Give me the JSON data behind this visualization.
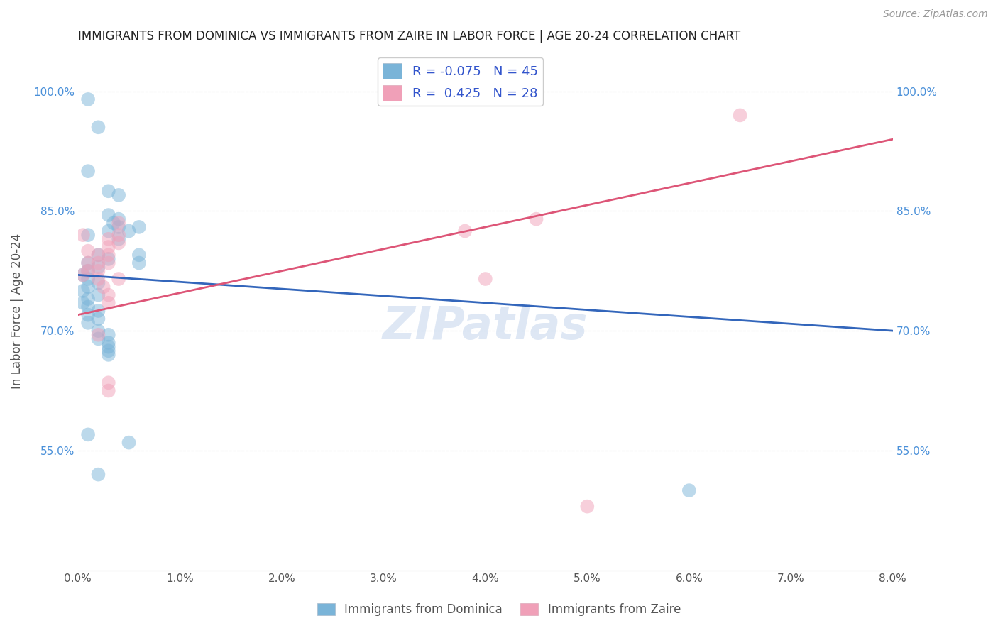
{
  "title": "IMMIGRANTS FROM DOMINICA VS IMMIGRANTS FROM ZAIRE IN LABOR FORCE | AGE 20-24 CORRELATION CHART",
  "source": "Source: ZipAtlas.com",
  "ylabel": "In Labor Force | Age 20-24",
  "xlim": [
    0.0,
    0.08
  ],
  "ylim": [
    0.4,
    1.05
  ],
  "xticks": [
    0.0,
    0.01,
    0.02,
    0.03,
    0.04,
    0.05,
    0.06,
    0.07,
    0.08
  ],
  "xticklabels": [
    "0.0%",
    "1.0%",
    "2.0%",
    "3.0%",
    "4.0%",
    "5.0%",
    "6.0%",
    "7.0%",
    "8.0%"
  ],
  "yticks": [
    0.55,
    0.7,
    0.85,
    1.0
  ],
  "yticklabels": [
    "55.0%",
    "70.0%",
    "85.0%",
    "100.0%"
  ],
  "legend_r1": "R = -0.075   N = 45",
  "legend_r2": "R =  0.425   N = 28",
  "dominica_color": "#7ab4d8",
  "zaire_color": "#f0a0b8",
  "dominica_trend_color": "#3366bb",
  "zaire_trend_color": "#dd5577",
  "watermark": "ZIPatlas",
  "dominica_trend_x0": 0.0,
  "dominica_trend_y0": 0.77,
  "dominica_trend_x1": 0.08,
  "dominica_trend_y1": 0.7,
  "zaire_trend_x0": 0.0,
  "zaire_trend_y0": 0.72,
  "zaire_trend_x1": 0.08,
  "zaire_trend_y1": 0.94,
  "dominica_points": [
    [
      0.001,
      0.99
    ],
    [
      0.002,
      0.955
    ],
    [
      0.001,
      0.9
    ],
    [
      0.003,
      0.875
    ],
    [
      0.004,
      0.87
    ],
    [
      0.003,
      0.845
    ],
    [
      0.004,
      0.84
    ],
    [
      0.0035,
      0.835
    ],
    [
      0.004,
      0.83
    ],
    [
      0.003,
      0.825
    ],
    [
      0.005,
      0.825
    ],
    [
      0.004,
      0.815
    ],
    [
      0.001,
      0.82
    ],
    [
      0.002,
      0.795
    ],
    [
      0.003,
      0.79
    ],
    [
      0.001,
      0.785
    ],
    [
      0.002,
      0.78
    ],
    [
      0.001,
      0.775
    ],
    [
      0.0005,
      0.77
    ],
    [
      0.001,
      0.765
    ],
    [
      0.002,
      0.76
    ],
    [
      0.001,
      0.755
    ],
    [
      0.0005,
      0.75
    ],
    [
      0.002,
      0.745
    ],
    [
      0.001,
      0.74
    ],
    [
      0.0005,
      0.735
    ],
    [
      0.001,
      0.73
    ],
    [
      0.002,
      0.725
    ],
    [
      0.001,
      0.72
    ],
    [
      0.002,
      0.715
    ],
    [
      0.001,
      0.71
    ],
    [
      0.002,
      0.7
    ],
    [
      0.003,
      0.695
    ],
    [
      0.002,
      0.69
    ],
    [
      0.003,
      0.685
    ],
    [
      0.003,
      0.68
    ],
    [
      0.003,
      0.675
    ],
    [
      0.003,
      0.67
    ],
    [
      0.001,
      0.57
    ],
    [
      0.002,
      0.52
    ],
    [
      0.005,
      0.56
    ],
    [
      0.006,
      0.83
    ],
    [
      0.006,
      0.795
    ],
    [
      0.006,
      0.785
    ],
    [
      0.06,
      0.5
    ]
  ],
  "zaire_points": [
    [
      0.0005,
      0.82
    ],
    [
      0.001,
      0.8
    ],
    [
      0.001,
      0.785
    ],
    [
      0.001,
      0.775
    ],
    [
      0.0005,
      0.77
    ],
    [
      0.002,
      0.795
    ],
    [
      0.002,
      0.785
    ],
    [
      0.002,
      0.775
    ],
    [
      0.002,
      0.765
    ],
    [
      0.003,
      0.815
    ],
    [
      0.003,
      0.805
    ],
    [
      0.003,
      0.795
    ],
    [
      0.003,
      0.785
    ],
    [
      0.004,
      0.835
    ],
    [
      0.004,
      0.82
    ],
    [
      0.004,
      0.81
    ],
    [
      0.004,
      0.765
    ],
    [
      0.0025,
      0.755
    ],
    [
      0.003,
      0.745
    ],
    [
      0.003,
      0.735
    ],
    [
      0.002,
      0.695
    ],
    [
      0.003,
      0.635
    ],
    [
      0.003,
      0.625
    ],
    [
      0.038,
      0.825
    ],
    [
      0.045,
      0.84
    ],
    [
      0.04,
      0.765
    ],
    [
      0.05,
      0.48
    ],
    [
      0.065,
      0.97
    ]
  ]
}
